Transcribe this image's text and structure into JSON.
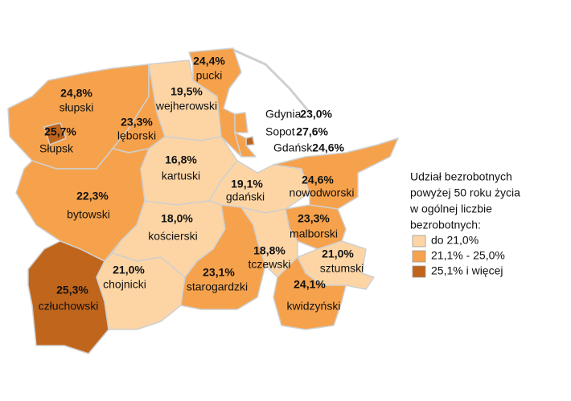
{
  "regions": [
    {
      "name": "pucki",
      "value": "24,4%",
      "color": "#f6a24c"
    },
    {
      "name": "słupski",
      "value": "24,8%",
      "color": "#f6a24c"
    },
    {
      "name": "Słupsk",
      "value": "25,7%",
      "color": "#c0651c"
    },
    {
      "name": "wejherowski",
      "value": "19,5%",
      "color": "#fdd5a5"
    },
    {
      "name": "lęborski",
      "value": "23,3%",
      "color": "#f6a24c"
    },
    {
      "name": "kartuski",
      "value": "16,8%",
      "color": "#fdd5a5"
    },
    {
      "name": "gdański",
      "value": "19,1%",
      "color": "#fdd5a5"
    },
    {
      "name": "nowodworski",
      "value": "24,6%",
      "color": "#f6a24c"
    },
    {
      "name": "bytowski",
      "value": "22,3%",
      "color": "#f6a24c"
    },
    {
      "name": "kościerski",
      "value": "18,0%",
      "color": "#fdd5a5"
    },
    {
      "name": "człuchowski",
      "value": "25,3%",
      "color": "#c0651c"
    },
    {
      "name": "chojnicki",
      "value": "21,0%",
      "color": "#fdd5a5"
    },
    {
      "name": "starogardzki",
      "value": "23,1%",
      "color": "#f6a24c"
    },
    {
      "name": "tczewski",
      "value": "18,8%",
      "color": "#fdd5a5"
    },
    {
      "name": "malborski",
      "value": "23,3%",
      "color": "#f6a24c"
    },
    {
      "name": "sztumski",
      "value": "21,0%",
      "color": "#fdd5a5"
    },
    {
      "name": "kwidzyński",
      "value": "24,1%",
      "color": "#f6a24c"
    }
  ],
  "cities": [
    {
      "name": "Gdynia",
      "value": "23,0%",
      "color": "#f6a24c"
    },
    {
      "name": "Sopot",
      "value": "27,6%",
      "color": "#c0651c"
    },
    {
      "name": "Gdańsk",
      "value": "24,6%",
      "color": "#f6a24c"
    }
  ],
  "legend": {
    "title": [
      "Udział bezrobotnych",
      "powyżej 50 roku życia",
      "w ogólnej liczbie",
      "bezrobotnych:"
    ],
    "items": [
      {
        "label": "do 21,0%",
        "color": "#fdd5a5"
      },
      {
        "label": "21,1% - 25,0%",
        "color": "#f6a24c"
      },
      {
        "label": "25,1% i więcej",
        "color": "#c0651c"
      }
    ]
  }
}
